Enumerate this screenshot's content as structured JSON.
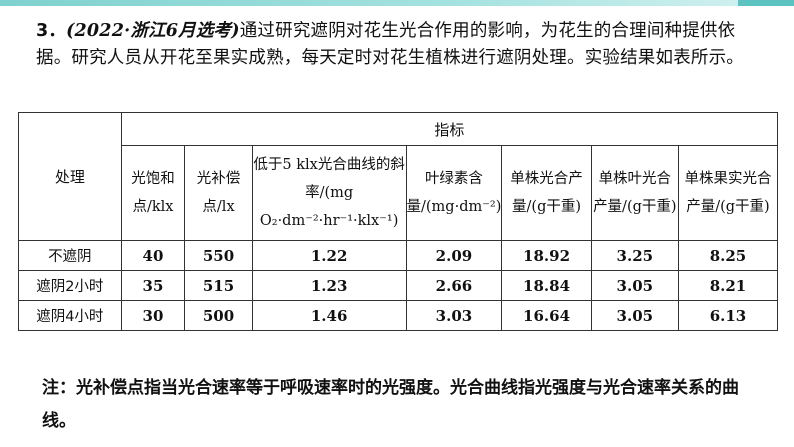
{
  "question": {
    "number": "3．",
    "source": "(2022·浙江6月选考)",
    "text": "通过研究遮阴对花生光合作用的影响，为花生的合理间种提供依据。研究人员从开花至果实成熟，每天定时对花生植株进行遮阴处理。实验结果如表所示。"
  },
  "table": {
    "corner_label": "处理",
    "group_header": "指标",
    "columns": [
      "光饱和点/klx",
      "光补偿点/lx",
      "低于5 klx光合曲线的斜率/(mg O₂·dm⁻²·hr⁻¹·klx⁻¹)",
      "叶绿素含量/(mg·dm⁻²)",
      "单株光合产量/(g干重)",
      "单株叶光合产量/(g干重)",
      "单株果实光合产量/(g干重)"
    ],
    "rows": [
      {
        "label": "不遮阴",
        "values": [
          "40",
          "550",
          "1.22",
          "2.09",
          "18.92",
          "3.25",
          "8.25"
        ]
      },
      {
        "label": "遮阴2小时",
        "values": [
          "35",
          "515",
          "1.23",
          "2.66",
          "18.84",
          "3.05",
          "8.21"
        ]
      },
      {
        "label": "遮阴4小时",
        "values": [
          "30",
          "500",
          "1.46",
          "3.03",
          "16.64",
          "3.05",
          "6.13"
        ]
      }
    ]
  },
  "note": "注：光补偿点指当光合速率等于呼吸速率时的光强度。光合曲线指光强度与光合速率关系的曲线。"
}
